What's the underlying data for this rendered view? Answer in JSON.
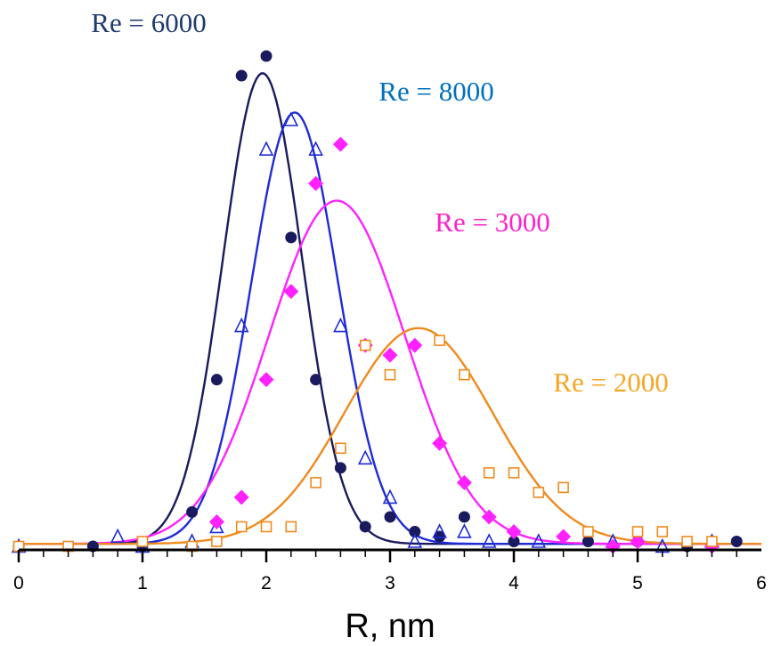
{
  "chart_data": {
    "type": "scatter",
    "title": "",
    "xlabel": "R, nm",
    "ylabel": "",
    "xlim": [
      0,
      6
    ],
    "ylim": [
      0,
      1
    ],
    "xticks": [
      "0",
      "1",
      "2",
      "3",
      "4",
      "5",
      "6"
    ],
    "grid": false,
    "legend": "inline labels near curves",
    "series": [
      {
        "name": "Re = 6000",
        "color": "#1a1a5e",
        "marker": "filled-circle",
        "points": [
          [
            0.0,
            0.0
          ],
          [
            0.6,
            0.0
          ],
          [
            1.0,
            0.0
          ],
          [
            1.4,
            0.07
          ],
          [
            1.6,
            0.34
          ],
          [
            1.8,
            0.96
          ],
          [
            2.0,
            1.0
          ],
          [
            2.2,
            0.63
          ],
          [
            2.4,
            0.34
          ],
          [
            2.6,
            0.16
          ],
          [
            2.8,
            0.04
          ],
          [
            3.0,
            0.06
          ],
          [
            3.2,
            0.03
          ],
          [
            3.4,
            0.02
          ],
          [
            3.6,
            0.06
          ],
          [
            4.0,
            0.01
          ],
          [
            4.6,
            0.01
          ],
          [
            5.0,
            0.01
          ],
          [
            5.4,
            0.0
          ],
          [
            5.8,
            0.01
          ]
        ],
        "fit": {
          "center": 1.97,
          "sigma": 0.32,
          "amplitude": 0.96
        }
      },
      {
        "name": "Re = 8000",
        "color": "#1f2bd6",
        "marker": "open-triangle",
        "points": [
          [
            0.0,
            0.0
          ],
          [
            0.8,
            0.02
          ],
          [
            1.0,
            0.0
          ],
          [
            1.4,
            0.01
          ],
          [
            1.6,
            0.04
          ],
          [
            1.8,
            0.45
          ],
          [
            2.0,
            0.81
          ],
          [
            2.2,
            0.87
          ],
          [
            2.4,
            0.81
          ],
          [
            2.6,
            0.45
          ],
          [
            2.8,
            0.18
          ],
          [
            3.0,
            0.1
          ],
          [
            3.2,
            0.01
          ],
          [
            3.4,
            0.03
          ],
          [
            3.6,
            0.03
          ],
          [
            3.8,
            0.01
          ],
          [
            4.2,
            0.01
          ],
          [
            4.8,
            0.01
          ],
          [
            5.2,
            0.0
          ],
          [
            5.6,
            0.01
          ]
        ],
        "fit": {
          "center": 2.23,
          "sigma": 0.35,
          "amplitude": 0.88
        }
      },
      {
        "name": "Re = 3000",
        "color": "#ff22ff",
        "marker": "filled-diamond",
        "points": [
          [
            1.6,
            0.05
          ],
          [
            1.8,
            0.1
          ],
          [
            2.0,
            0.34
          ],
          [
            2.2,
            0.52
          ],
          [
            2.4,
            0.74
          ],
          [
            2.6,
            0.82
          ],
          [
            2.8,
            0.41
          ],
          [
            3.0,
            0.39
          ],
          [
            3.2,
            0.41
          ],
          [
            3.4,
            0.21
          ],
          [
            3.6,
            0.13
          ],
          [
            3.8,
            0.06
          ],
          [
            4.0,
            0.03
          ],
          [
            4.4,
            0.02
          ],
          [
            4.8,
            0.0
          ],
          [
            5.0,
            0.01
          ],
          [
            5.6,
            0.0
          ]
        ],
        "fit": {
          "center": 2.57,
          "sigma": 0.55,
          "amplitude": 0.7
        }
      },
      {
        "name": "Re = 2000",
        "color": "#f08a1c",
        "marker": "open-square",
        "points": [
          [
            0.0,
            0.0
          ],
          [
            0.4,
            0.0
          ],
          [
            1.0,
            0.01
          ],
          [
            1.4,
            0.0
          ],
          [
            1.6,
            0.01
          ],
          [
            1.8,
            0.04
          ],
          [
            2.0,
            0.04
          ],
          [
            2.2,
            0.04
          ],
          [
            2.4,
            0.13
          ],
          [
            2.6,
            0.2
          ],
          [
            2.8,
            0.41
          ],
          [
            3.0,
            0.35
          ],
          [
            3.4,
            0.42
          ],
          [
            3.6,
            0.35
          ],
          [
            3.8,
            0.15
          ],
          [
            4.0,
            0.15
          ],
          [
            4.2,
            0.11
          ],
          [
            4.4,
            0.12
          ],
          [
            4.6,
            0.03
          ],
          [
            5.0,
            0.03
          ],
          [
            5.2,
            0.03
          ],
          [
            5.4,
            0.01
          ],
          [
            5.6,
            0.01
          ]
        ],
        "fit": {
          "center": 3.23,
          "sigma": 0.6,
          "amplitude": 0.44
        }
      }
    ]
  }
}
